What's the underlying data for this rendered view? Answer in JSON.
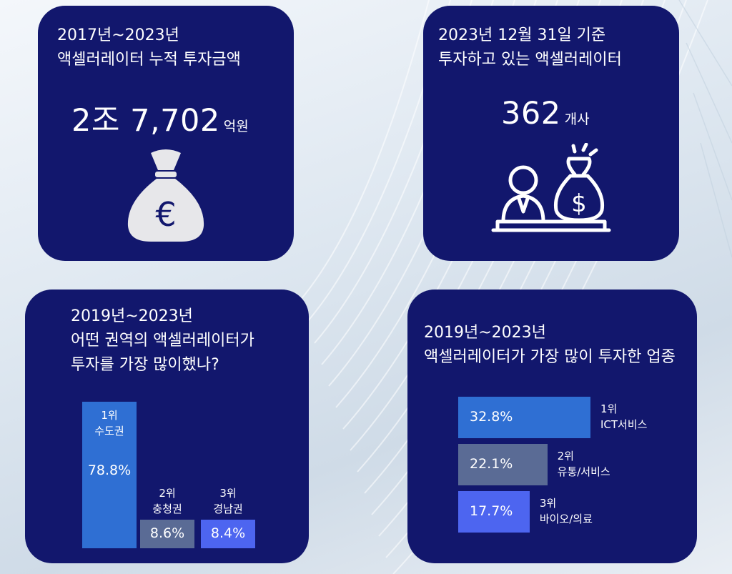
{
  "colors": {
    "card": "#12176d",
    "rank1": "#2f6fd3",
    "rank2": "#5a6b95",
    "rank3": "#4d65f0",
    "icon": "#ffffff"
  },
  "card1": {
    "line1": "2017년~2023년",
    "line2": "액셀러레이터 누적 투자금액",
    "value": "2조 7,702",
    "unit": "억원",
    "icon": "euro-money-bag-icon"
  },
  "card2": {
    "line1": "2023년 12월 31일 기준",
    "line2": "투자하고 있는 액셀러레이터",
    "value": "362",
    "unit": "개사",
    "icon": "investor-money-bag-icon"
  },
  "card3": {
    "line1": "2019년~2023년",
    "line2": "어떤 권역의 액셀러레이터가",
    "line3": "투자를 가장 많이했나?"
  },
  "card4": {
    "line1": "2019년~2023년",
    "line2": "액셀러레이터가 가장 많이 투자한 업종"
  },
  "chart_data": [
    {
      "type": "bar",
      "categories": [
        "수도권",
        "충청권",
        "경남권"
      ],
      "ranks": [
        "1위",
        "2위",
        "3위"
      ],
      "values": [
        78.8,
        8.6,
        8.4
      ],
      "labels": [
        "78.8%",
        "8.6%",
        "8.4%"
      ],
      "colors": [
        "#2f6fd3",
        "#5a6b95",
        "#4d65f0"
      ]
    },
    {
      "type": "bar",
      "orientation": "horizontal",
      "categories": [
        "ICT서비스",
        "유통/서비스",
        "바이오/의료"
      ],
      "ranks": [
        "1위",
        "2위",
        "3위"
      ],
      "values": [
        32.8,
        22.1,
        17.7
      ],
      "labels": [
        "32.8%",
        "22.1%",
        "17.7%"
      ],
      "colors": [
        "#2f6fd3",
        "#5a6b95",
        "#4d65f0"
      ]
    }
  ]
}
